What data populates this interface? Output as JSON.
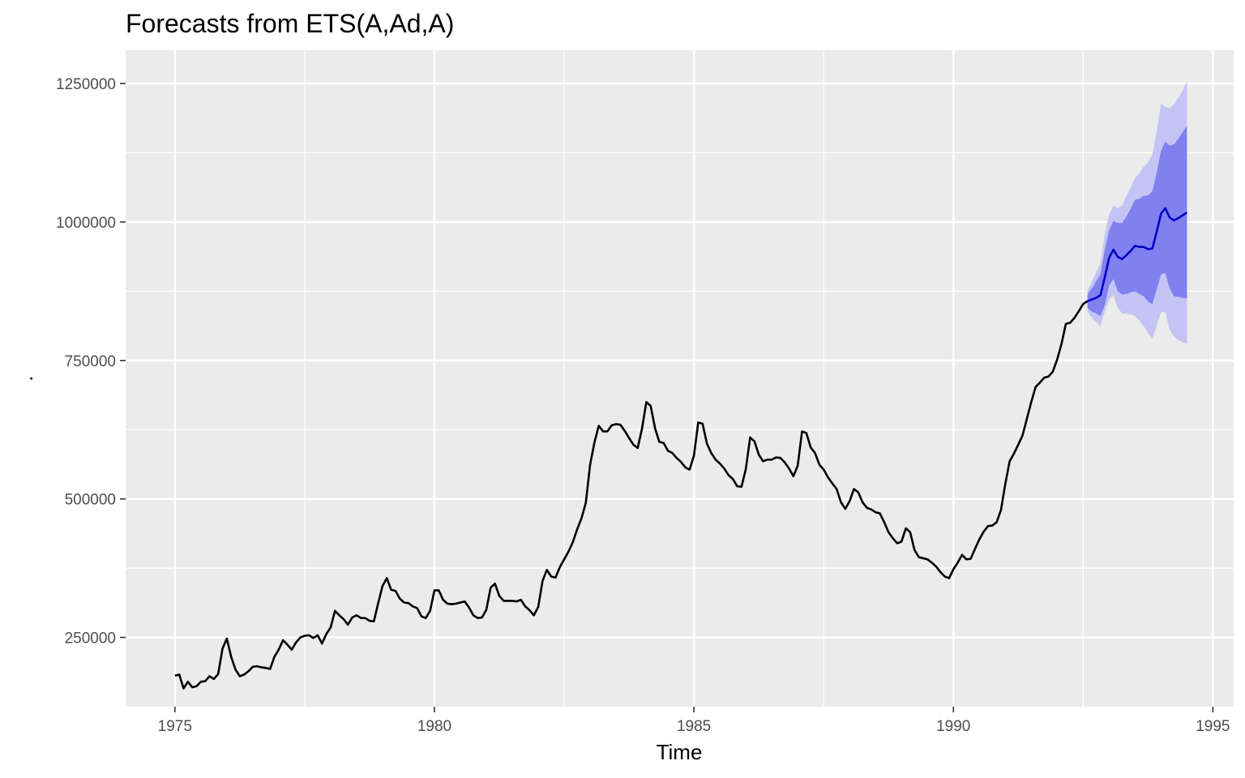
{
  "chart_data": {
    "type": "line",
    "title": "Forecasts from ETS(A,Ad,A)",
    "xlabel": "Time",
    "ylabel": ".",
    "xlim": [
      1974.05,
      1995.4
    ],
    "ylim": [
      125000,
      1310000
    ],
    "x_ticks": [
      1975,
      1980,
      1985,
      1990,
      1995
    ],
    "x_tick_labels": [
      "1975",
      "1980",
      "1985",
      "1990",
      "1995"
    ],
    "y_ticks": [
      250000,
      500000,
      750000,
      1000000,
      1250000
    ],
    "y_tick_labels": [
      "250000",
      "500000",
      "750000",
      "1000000",
      "1250000"
    ],
    "grid": true,
    "legend": "none",
    "colors": {
      "panel": "#ebebeb",
      "observed": "#000000",
      "forecast": "#0000cc",
      "band80": "#8080ee",
      "band95": "#c4c4f4"
    },
    "observed": {
      "start": 1975,
      "frequency": 12,
      "values": [
        181000,
        183000,
        158000,
        170000,
        160000,
        162000,
        170000,
        171000,
        180000,
        175000,
        184000,
        230000,
        248000,
        215000,
        192000,
        180000,
        183000,
        189000,
        197000,
        198000,
        196000,
        195000,
        193000,
        215000,
        228000,
        245000,
        237000,
        228000,
        241000,
        250000,
        253000,
        254000,
        249000,
        254000,
        239000,
        256000,
        268000,
        298000,
        290000,
        283000,
        273000,
        286000,
        290000,
        285000,
        285000,
        280000,
        279000,
        312000,
        343000,
        357000,
        336000,
        334000,
        320000,
        313000,
        312000,
        306000,
        303000,
        288000,
        285000,
        298000,
        335000,
        335000,
        318000,
        311000,
        310000,
        311000,
        313000,
        315000,
        304000,
        290000,
        285000,
        286000,
        300000,
        340000,
        347000,
        325000,
        316000,
        316000,
        316000,
        315000,
        318000,
        306000,
        299000,
        290000,
        305000,
        352000,
        372000,
        360000,
        358000,
        377000,
        391000,
        405000,
        422000,
        445000,
        465000,
        493000,
        562000,
        602000,
        632000,
        622000,
        622000,
        633000,
        635000,
        634000,
        623000,
        610000,
        598000,
        592000,
        627000,
        675000,
        668000,
        628000,
        603000,
        601000,
        587000,
        583000,
        574000,
        567000,
        557000,
        553000,
        578000,
        638000,
        636000,
        600000,
        583000,
        571000,
        564000,
        555000,
        543000,
        536000,
        523000,
        522000,
        554000,
        611000,
        604000,
        580000,
        568000,
        571000,
        571000,
        575000,
        574000,
        566000,
        555000,
        541000,
        560000,
        622000,
        619000,
        593000,
        583000,
        562000,
        553000,
        539000,
        528000,
        518000,
        494000,
        482000,
        496000,
        518000,
        512000,
        494000,
        484000,
        481000,
        476000,
        474000,
        458000,
        440000,
        429000,
        420000,
        423000,
        447000,
        440000,
        408000,
        395000,
        393000,
        391000,
        385000,
        378000,
        368000,
        360000,
        357000,
        373000,
        385000,
        399000,
        391000,
        392000,
        410000,
        427000,
        441000,
        451000,
        452000,
        458000,
        480000,
        527000,
        568000,
        582000,
        598000,
        615000,
        645000,
        675000,
        702000,
        710000,
        719000,
        721000,
        730000,
        752000,
        780000,
        816000,
        818000,
        827000,
        839000,
        852000,
        857000
      ]
    },
    "forecast": {
      "start": 1992.5833,
      "frequency": 12,
      "mean": [
        857000,
        860000,
        863000,
        868000,
        900000,
        935000,
        950000,
        937000,
        933000,
        940000,
        948000,
        957000,
        955000,
        955000,
        951000,
        952000,
        982000,
        1015000,
        1025000,
        1008000,
        1003000,
        1007000,
        1012000,
        1017000
      ],
      "lo80": [
        845000,
        838000,
        835000,
        830000,
        850000,
        885000,
        897000,
        875000,
        869000,
        870000,
        873000,
        875000,
        870000,
        866000,
        856000,
        852000,
        878000,
        905000,
        908000,
        880000,
        866000,
        865000,
        863000,
        862000
      ],
      "hi80": [
        869000,
        880000,
        893000,
        905000,
        950000,
        985000,
        1002000,
        998000,
        998000,
        1010000,
        1024000,
        1040000,
        1042000,
        1047000,
        1048000,
        1055000,
        1089000,
        1128000,
        1145000,
        1138000,
        1140000,
        1150000,
        1162000,
        1173000
      ],
      "lo95": [
        838000,
        827000,
        820000,
        812000,
        838000,
        860000,
        868000,
        845000,
        835000,
        834000,
        833000,
        830000,
        822000,
        812000,
        800000,
        790000,
        812000,
        837000,
        838000,
        805000,
        793000,
        787000,
        783000,
        780000
      ],
      "hi95": [
        876000,
        892000,
        909000,
        925000,
        980000,
        1013000,
        1030000,
        1025000,
        1030000,
        1047000,
        1063000,
        1080000,
        1088000,
        1100000,
        1108000,
        1122000,
        1164000,
        1213000,
        1208000,
        1205000,
        1213000,
        1224000,
        1237000,
        1255000
      ]
    }
  }
}
